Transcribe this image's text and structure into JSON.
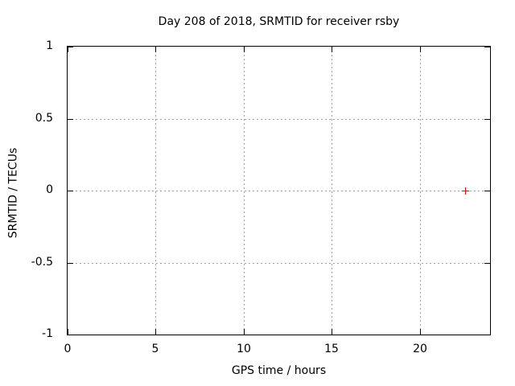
{
  "chart_data": {
    "type": "scatter",
    "title": "Day 208 of 2018, SRMTID for receiver rsby",
    "xlabel": "GPS time / hours",
    "ylabel": "SRMTID / TECUs",
    "xlim": [
      0,
      24
    ],
    "ylim": [
      -1,
      1
    ],
    "x_ticks": {
      "values": [
        0,
        5,
        10,
        15,
        20
      ],
      "labels": [
        "0",
        "5",
        "10",
        "15",
        "20"
      ]
    },
    "y_ticks": {
      "values": [
        1,
        0.5,
        0,
        -0.5,
        -1
      ],
      "labels": [
        "1",
        "0.5",
        "0",
        "-0.5",
        "-1"
      ]
    },
    "grid": true,
    "legend": "none",
    "series": [
      {
        "name": "SRMTID",
        "style": "points",
        "marker": "plus",
        "color": "#ff0000",
        "points": [
          {
            "x": 22.6,
            "y": 0.0
          }
        ]
      }
    ],
    "colors": {
      "background": "#ffffff",
      "border": "#000000",
      "grid": "#a0a0a0",
      "text": "#000000"
    }
  }
}
